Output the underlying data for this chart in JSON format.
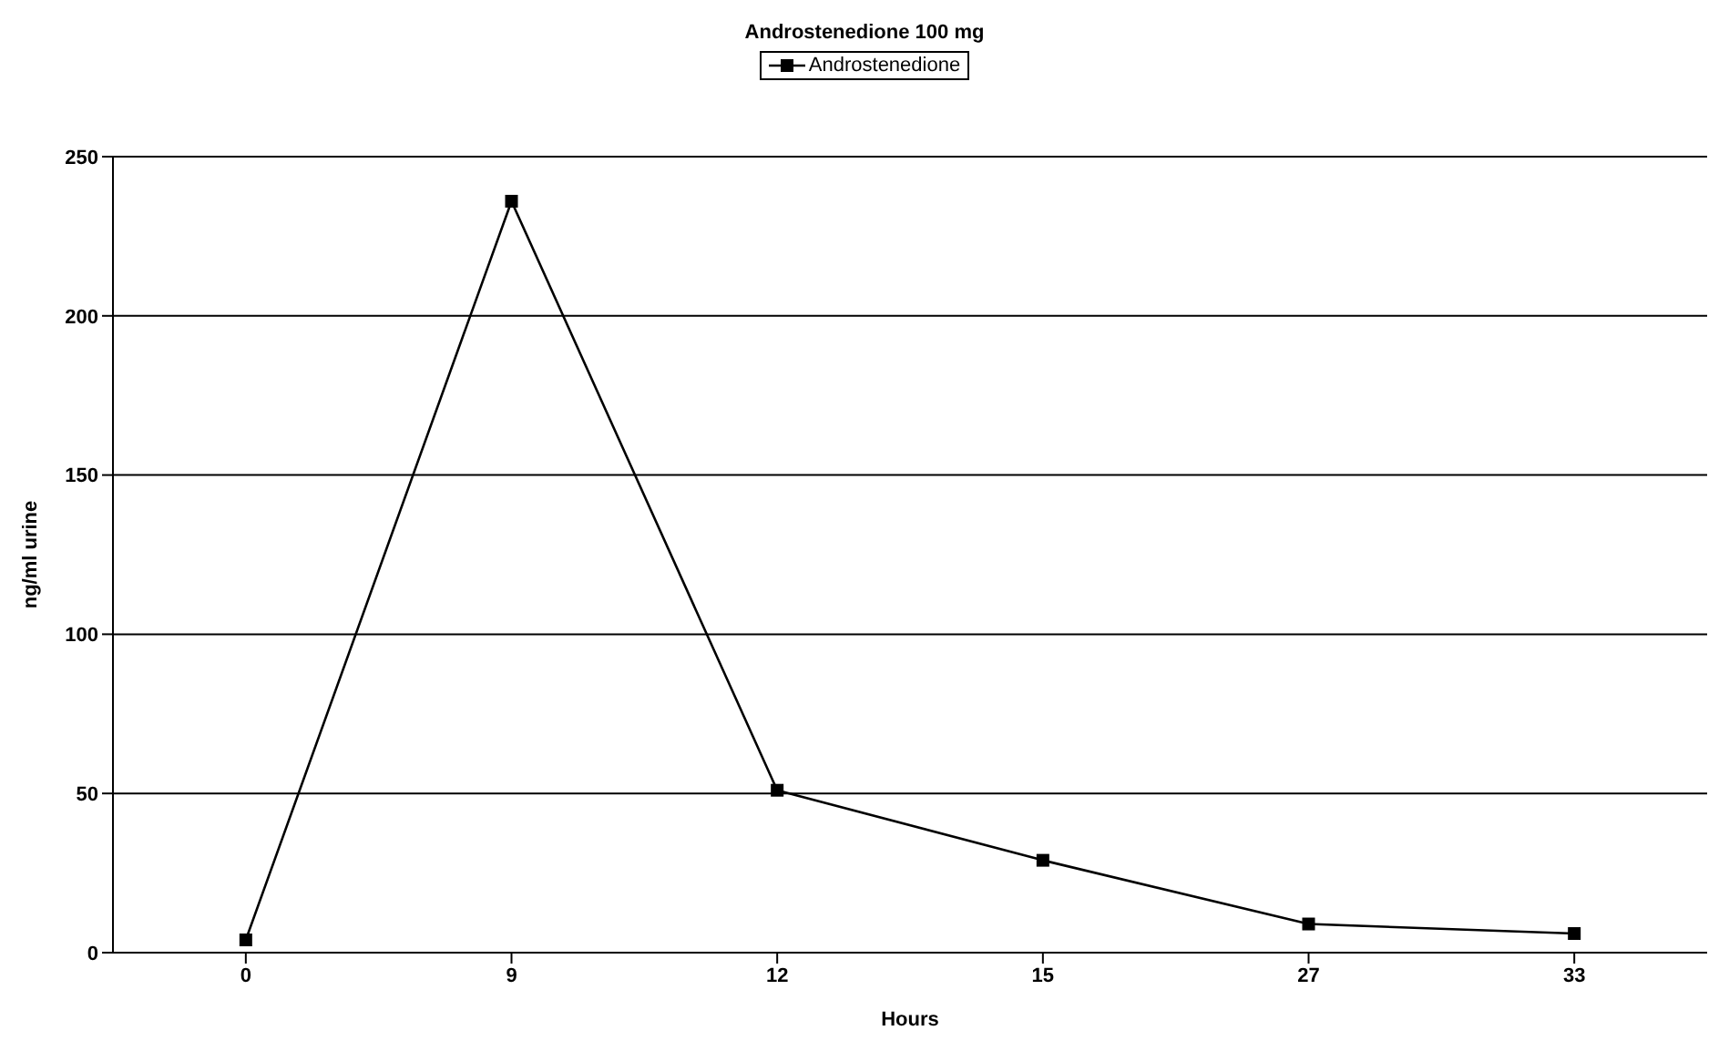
{
  "chart_data": {
    "type": "line",
    "title": "Androstenedione 100 mg",
    "xlabel": "Hours",
    "ylabel": "ng/ml urine",
    "categories": [
      "0",
      "9",
      "12",
      "15",
      "27",
      "33"
    ],
    "series": [
      {
        "name": "Androstenedione",
        "color": "#000000",
        "values": [
          4,
          236,
          51,
          29,
          9,
          6
        ]
      }
    ],
    "ylim": [
      0,
      250
    ],
    "yticks": [
      0,
      50,
      100,
      150,
      200,
      250
    ],
    "grid": "y",
    "legend": "top",
    "marker": "square",
    "line_style": "solid"
  }
}
